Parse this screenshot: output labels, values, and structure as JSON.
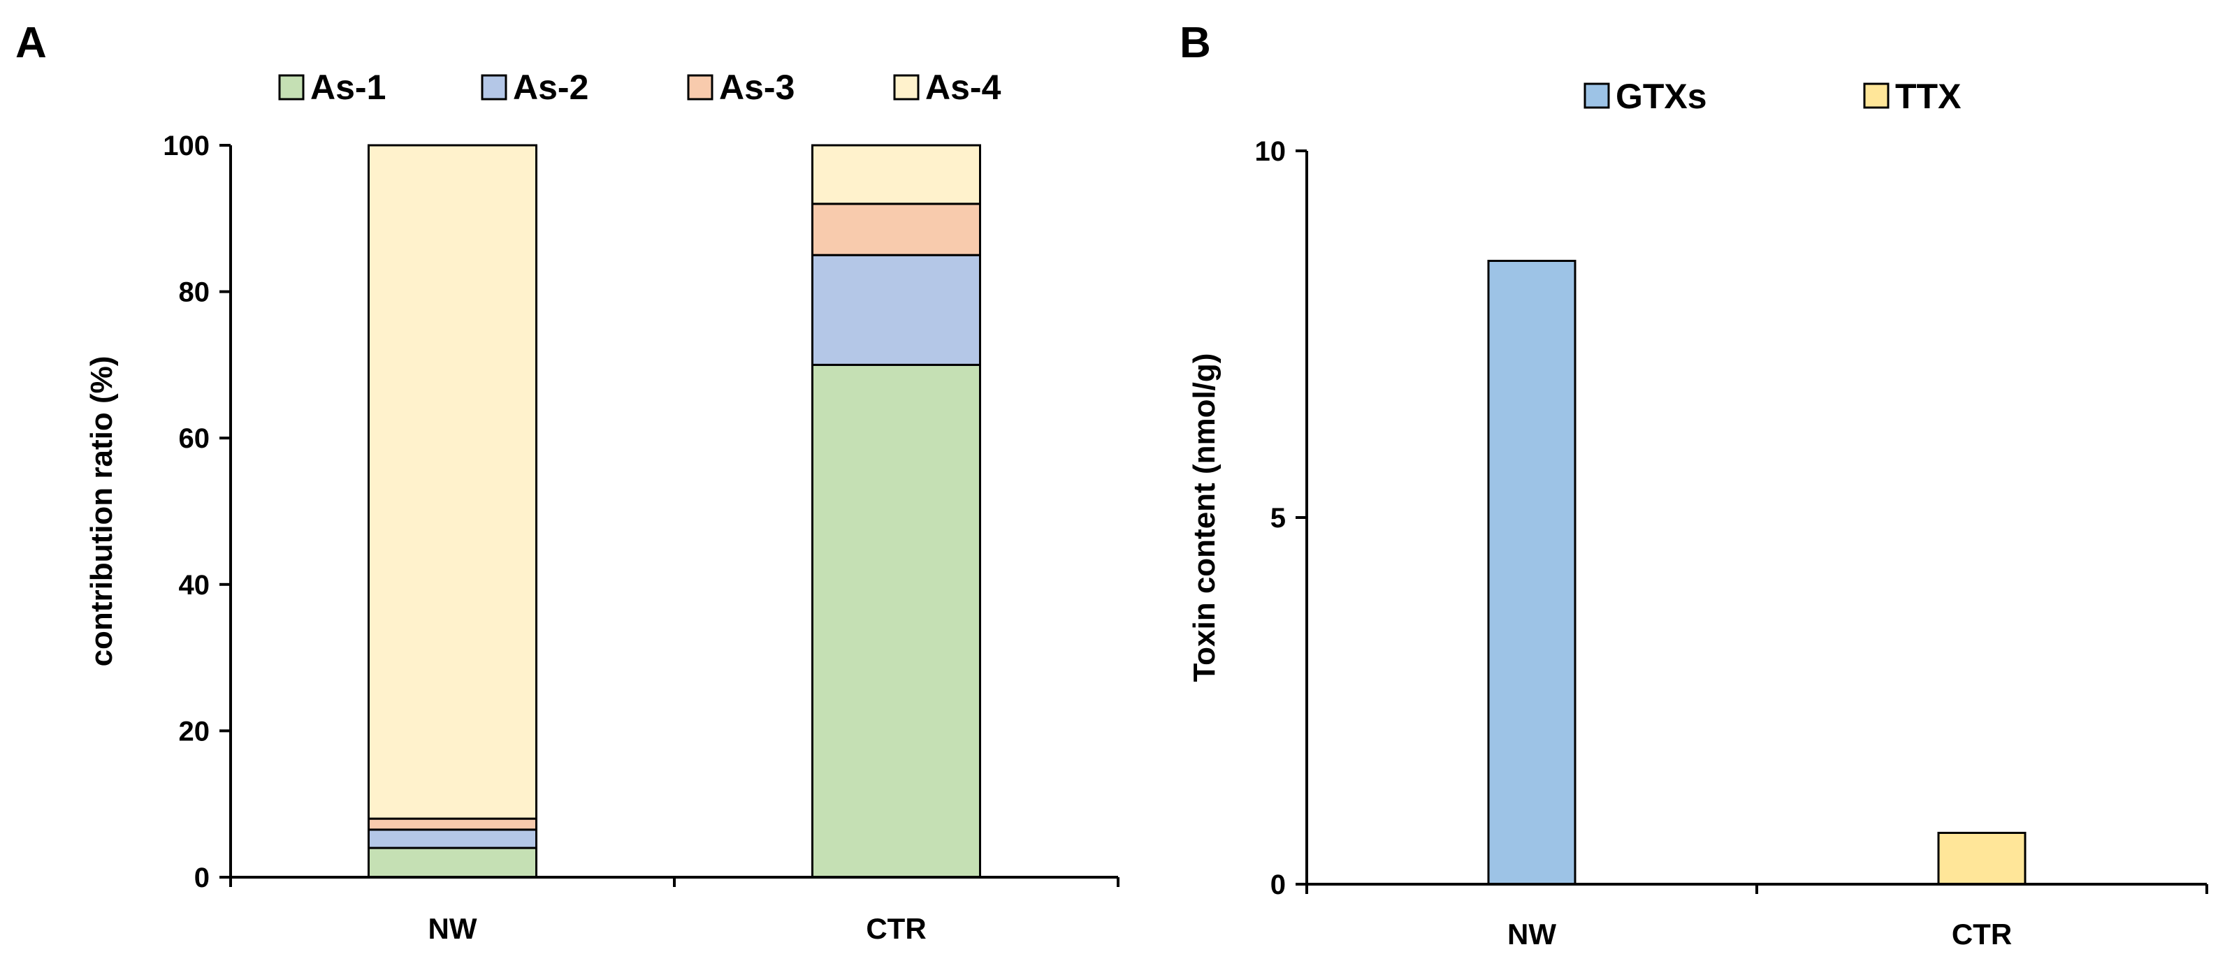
{
  "panels": {
    "a_label": "A",
    "b_label": "B"
  },
  "chart_data": [
    {
      "type": "bar",
      "stacked": true,
      "categories": [
        "NW",
        "CTR"
      ],
      "ylabel": "contribution ratio (%)",
      "xlabel": "",
      "ylim": [
        0,
        100
      ],
      "yticks": [
        0,
        20,
        40,
        60,
        80,
        100
      ],
      "legend_position": "top",
      "series": [
        {
          "name": "As-1",
          "values": [
            4,
            70
          ],
          "color": "#c5e0b4"
        },
        {
          "name": "As-2",
          "values": [
            2.5,
            15
          ],
          "color": "#b4c7e7"
        },
        {
          "name": "As-3",
          "values": [
            1.5,
            7
          ],
          "color": "#f8cbad"
        },
        {
          "name": "As-4",
          "values": [
            92,
            8
          ],
          "color": "#fff2cc"
        }
      ]
    },
    {
      "type": "bar",
      "categories": [
        "NW",
        "CTR"
      ],
      "ylabel": "Toxin content (nmol/g)",
      "xlabel": "",
      "ylim": [
        0,
        10
      ],
      "yticks": [
        0,
        5,
        10
      ],
      "legend_position": "top",
      "series": [
        {
          "name": "GTXs",
          "values": [
            8.5,
            0
          ],
          "color": "#9dc3e6"
        },
        {
          "name": "TTX",
          "values": [
            0,
            0.7
          ],
          "color": "#ffe699"
        }
      ]
    }
  ]
}
